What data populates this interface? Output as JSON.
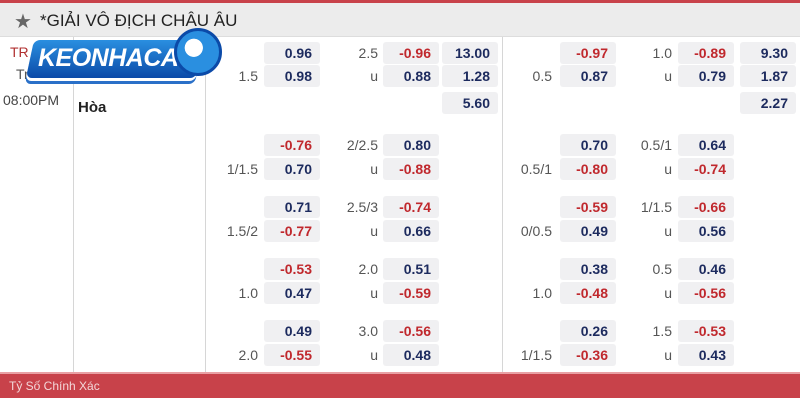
{
  "header": {
    "title": "*GIẢI VÔ ĐỊCH CHÂU ÂU",
    "star_icon": "star-icon"
  },
  "match": {
    "team_partial": "TR",
    "team_partial2": "Tr",
    "time": "08:00PM",
    "draw_label": "Hòa"
  },
  "logo": {
    "text": "KEONHACAI"
  },
  "colors": {
    "positive": "#1c2a5e",
    "negative": "#c0282d",
    "footer": "#c8424a"
  },
  "main": {
    "left": [
      [
        "",
        "0.96",
        "2.5",
        "-0.96",
        "13.00"
      ],
      [
        "1.5",
        "0.98",
        "u",
        "0.88",
        "1.28"
      ],
      [
        "",
        "",
        "",
        "",
        "5.60"
      ]
    ],
    "right": [
      [
        "",
        "-0.97",
        "1.0",
        "-0.89",
        "9.30"
      ],
      [
        "0.5",
        "0.87",
        "u",
        "0.79",
        "1.87"
      ],
      [
        "",
        "",
        "",
        "",
        "2.27"
      ]
    ]
  },
  "groups": [
    {
      "left": [
        [
          "",
          "-0.76",
          "2/2.5",
          "0.80"
        ],
        [
          "1/1.5",
          "0.70",
          "u",
          "-0.88"
        ]
      ],
      "right": [
        [
          "",
          "0.70",
          "0.5/1",
          "0.64"
        ],
        [
          "0.5/1",
          "-0.80",
          "u",
          "-0.74"
        ]
      ]
    },
    {
      "left": [
        [
          "",
          "0.71",
          "2.5/3",
          "-0.74"
        ],
        [
          "1.5/2",
          "-0.77",
          "u",
          "0.66"
        ]
      ],
      "right": [
        [
          "",
          "-0.59",
          "1/1.5",
          "-0.66"
        ],
        [
          "0/0.5",
          "0.49",
          "u",
          "0.56"
        ]
      ]
    },
    {
      "left": [
        [
          "",
          "-0.53",
          "2.0",
          "0.51"
        ],
        [
          "1.0",
          "0.47",
          "u",
          "-0.59"
        ]
      ],
      "right": [
        [
          "",
          "0.38",
          "0.5",
          "0.46"
        ],
        [
          "1.0",
          "-0.48",
          "u",
          "-0.56"
        ]
      ]
    },
    {
      "left": [
        [
          "",
          "0.49",
          "3.0",
          "-0.56"
        ],
        [
          "2.0",
          "-0.55",
          "u",
          "0.48"
        ]
      ],
      "right": [
        [
          "",
          "0.26",
          "1.5",
          "-0.53"
        ],
        [
          "1/1.5",
          "-0.36",
          "u",
          "0.43"
        ]
      ]
    }
  ],
  "footer": {
    "label": "Tỷ Số Chính Xác"
  }
}
